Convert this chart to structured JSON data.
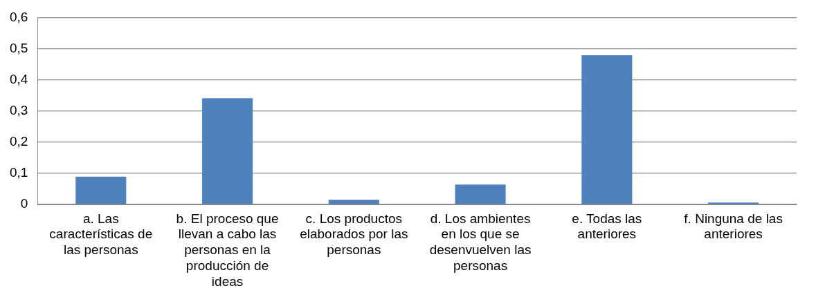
{
  "chart_data": {
    "type": "bar",
    "categories": [
      "a.\tLas características de las personas",
      "b.\tEl proceso que llevan a cabo las personas en la producción de ideas",
      "c.\tLos productos elaborados por las personas",
      "d.\tLos ambientes en los que se desenvuelven las personas",
      "e.\tTodas las anteriores",
      "f.\tNinguna de las anteriores"
    ],
    "values": [
      0.089,
      0.341,
      0.015,
      0.064,
      0.479,
      0.006
    ],
    "color": "#4f81bd",
    "ylim": [
      0,
      0.6
    ],
    "yticks": [
      0,
      {
        "value": 0.1,
        "label": "0,1"
      },
      {
        "value": 0.2,
        "label": "0,2"
      },
      {
        "value": 0.3,
        "label": "0,3"
      },
      {
        "value": 0.4,
        "label": "0,4"
      },
      {
        "value": 0.5,
        "label": "0,5"
      },
      {
        "value": 0.6,
        "label": "0,6"
      }
    ],
    "grid": "y",
    "legend": false
  }
}
